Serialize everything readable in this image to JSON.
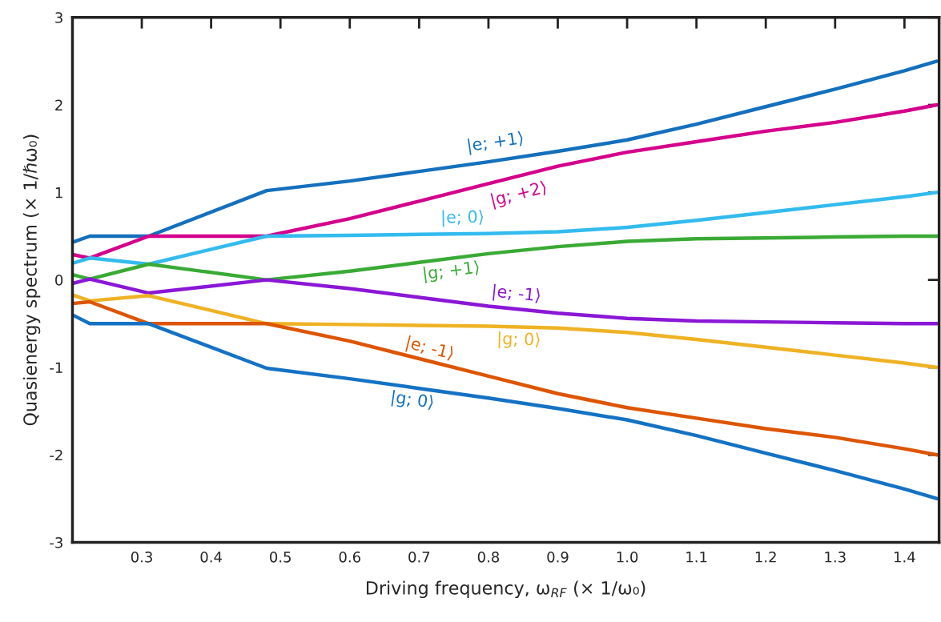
{
  "chart_data": {
    "type": "line",
    "xlabel": "Driving frequency, ω$_{RF}$ (× 1/ω₀)",
    "ylabel": "Quasienergy spectrum (× 1/ℏω₀)",
    "x": [
      0.2,
      0.225,
      0.31,
      0.48,
      0.6,
      0.7,
      0.8,
      0.9,
      1.0,
      1.1,
      1.2,
      1.3,
      1.4,
      1.447
    ],
    "series": [
      {
        "name": "|e; +1⟩",
        "color": "#1470bd",
        "values": [
          0.43,
          0.5,
          0.5,
          1.02,
          1.13,
          1.24,
          1.35,
          1.47,
          1.6,
          1.78,
          1.98,
          2.18,
          2.39,
          2.5
        ]
      },
      {
        "name": "|g; +2⟩",
        "color": "#d4008c",
        "values": [
          0.29,
          0.25,
          0.5,
          0.5,
          0.7,
          0.9,
          1.1,
          1.3,
          1.46,
          1.58,
          1.7,
          1.8,
          1.93,
          2.0
        ]
      },
      {
        "name": "|e; 0⟩",
        "color": "#33bbee",
        "values": [
          0.19,
          0.25,
          0.18,
          0.5,
          0.51,
          0.52,
          0.53,
          0.55,
          0.6,
          0.68,
          0.77,
          0.86,
          0.95,
          1.0
        ]
      },
      {
        "name": "|g; +1⟩",
        "color": "#3aaa35",
        "values": [
          0.06,
          0.01,
          0.18,
          0.0,
          0.1,
          0.2,
          0.3,
          0.38,
          0.44,
          0.47,
          0.48,
          0.49,
          0.5,
          0.5
        ]
      },
      {
        "name": "|e; -1⟩",
        "color": "#8a17d6",
        "values": [
          -0.04,
          0.01,
          -0.15,
          0.0,
          -0.1,
          -0.2,
          -0.3,
          -0.38,
          -0.44,
          -0.47,
          -0.48,
          -0.49,
          -0.5,
          -0.5
        ]
      },
      {
        "name": "|g; 0⟩",
        "color": "#eeb224",
        "values": [
          -0.17,
          -0.24,
          -0.18,
          -0.5,
          -0.51,
          -0.52,
          -0.53,
          -0.55,
          -0.6,
          -0.68,
          -0.77,
          -0.86,
          -0.95,
          -1.0
        ]
      },
      {
        "name": "|e; -1⟩",
        "color": "#dd5500",
        "values": [
          -0.27,
          -0.25,
          -0.5,
          -0.5,
          -0.7,
          -0.9,
          -1.1,
          -1.3,
          -1.46,
          -1.58,
          -1.7,
          -1.8,
          -1.93,
          -2.0
        ]
      },
      {
        "name": "|g; 0⟩",
        "color": "#1472c4",
        "values": [
          -0.4,
          -0.5,
          -0.5,
          -1.01,
          -1.13,
          -1.24,
          -1.35,
          -1.47,
          -1.6,
          -1.78,
          -1.98,
          -2.18,
          -2.39,
          -2.5
        ]
      }
    ],
    "xlim": [
      0.2,
      1.45
    ],
    "ylim": [
      -3,
      3
    ],
    "xticks": [
      0.3,
      0.4,
      0.5,
      0.6,
      0.7,
      0.8,
      0.9,
      {
        "value": 1.0,
        "label": "1.0"
      },
      1.1,
      1.2,
      1.3,
      1.4
    ],
    "yticks": [
      -3,
      -2,
      -1,
      0,
      1,
      2,
      3
    ],
    "grid": false,
    "legend": false,
    "marker": "none",
    "line_style": "solid"
  }
}
